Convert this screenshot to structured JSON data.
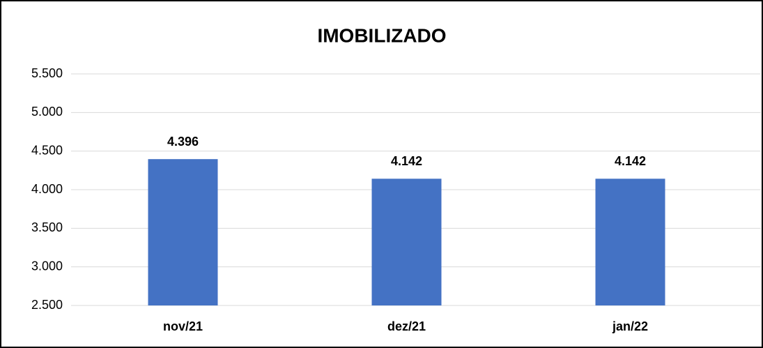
{
  "chart_data": {
    "type": "bar",
    "title": "IMOBILIZADO",
    "categories": [
      "nov/21",
      "dez/21",
      "jan/22"
    ],
    "values": [
      4396,
      4142,
      4142
    ],
    "value_labels": [
      "4.396",
      "4.142",
      "4.142"
    ],
    "color": "#4472c4",
    "ylim": [
      2500,
      5500
    ],
    "yticks": [
      {
        "value": 2500,
        "label": "2.500"
      },
      {
        "value": 3000,
        "label": "3.000"
      },
      {
        "value": 3500,
        "label": "3.500"
      },
      {
        "value": 4000,
        "label": "4.000"
      },
      {
        "value": 4500,
        "label": "4.500"
      },
      {
        "value": 5000,
        "label": "5.000"
      },
      {
        "value": 5500,
        "label": "5.500"
      }
    ],
    "grid": true
  }
}
